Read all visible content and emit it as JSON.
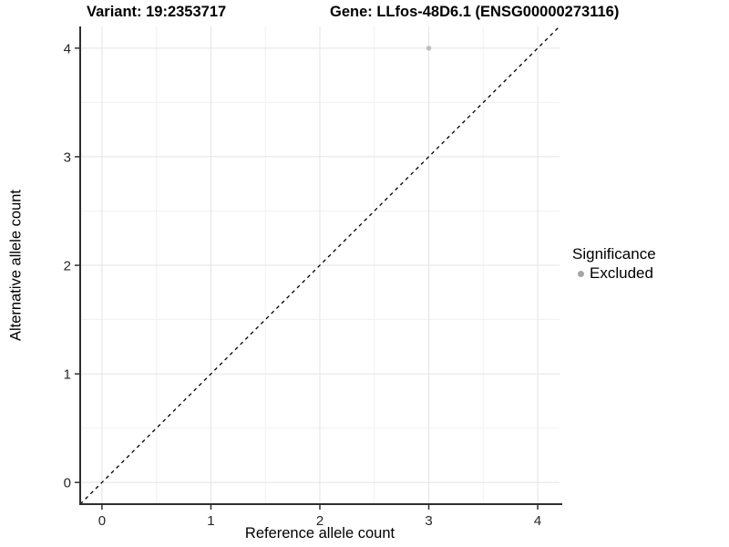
{
  "titles": {
    "variant": "Variant: 19:2353717",
    "gene": "Gene: LLfos-48D6.1 (ENSG00000273116)"
  },
  "chart_data": {
    "type": "scatter",
    "title_left": "Variant: 19:2353717",
    "title_right": "Gene: LLfos-48D6.1 (ENSG00000273116)",
    "xlabel": "Reference allele count",
    "ylabel": "Alternative allele count",
    "xlim": [
      -0.2,
      4.2
    ],
    "ylim": [
      -0.2,
      4.2
    ],
    "x_ticks": [
      0,
      1,
      2,
      3,
      4
    ],
    "y_ticks": [
      0,
      1,
      2,
      3,
      4
    ],
    "minor_ticks": [
      0.5,
      1.5,
      2.5,
      3.5
    ],
    "grid": true,
    "points": [
      {
        "x": 3,
        "y": 4,
        "series": "Excluded"
      }
    ],
    "reference_line": {
      "type": "identity",
      "from": [
        -0.2,
        -0.2
      ],
      "to": [
        4.2,
        4.2
      ],
      "style": "dashed",
      "color": "#000000"
    },
    "legend": {
      "title": "Significance",
      "position": "right",
      "items": [
        {
          "label": "Excluded",
          "color": "#a6a6a6",
          "marker": "circle"
        }
      ]
    },
    "colors": {
      "point": "#bdbdbd",
      "grid_major": "#e3e3e3",
      "grid_minor": "#f1f1f1",
      "axis_line": "#2f2f2f",
      "tick_text": "#262626",
      "background": "#ffffff"
    }
  }
}
